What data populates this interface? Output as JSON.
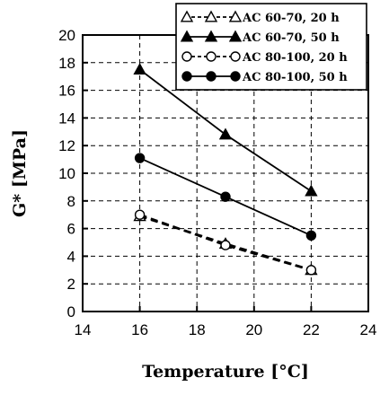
{
  "chart_data": {
    "type": "line",
    "title": "",
    "xlabel": "Temperature [°C]",
    "ylabel": "G* [MPa]",
    "xlim": [
      14,
      24
    ],
    "ylim": [
      0,
      20
    ],
    "x_ticks": [
      14,
      16,
      18,
      20,
      22,
      24
    ],
    "y_ticks": [
      0,
      2,
      4,
      6,
      8,
      10,
      12,
      14,
      16,
      18,
      20
    ],
    "grid": true,
    "legend_position": "top-right",
    "x": [
      16,
      19,
      22
    ],
    "series": [
      {
        "name": "AC 60-70, 20 h",
        "values": [
          6.9,
          4.9,
          3.0
        ],
        "line": "dashed",
        "marker": "open-triangle",
        "color": "#000000"
      },
      {
        "name": "AC 60-70, 50 h",
        "values": [
          17.5,
          12.8,
          8.7
        ],
        "line": "solid",
        "marker": "filled-triangle",
        "color": "#000000"
      },
      {
        "name": "AC 80-100, 20 h",
        "values": [
          7.0,
          4.8,
          3.0
        ],
        "line": "dashed",
        "marker": "open-circle",
        "color": "#000000"
      },
      {
        "name": "AC 80-100, 50 h",
        "values": [
          11.1,
          8.3,
          5.5
        ],
        "line": "solid",
        "marker": "filled-circle",
        "color": "#000000"
      }
    ]
  }
}
